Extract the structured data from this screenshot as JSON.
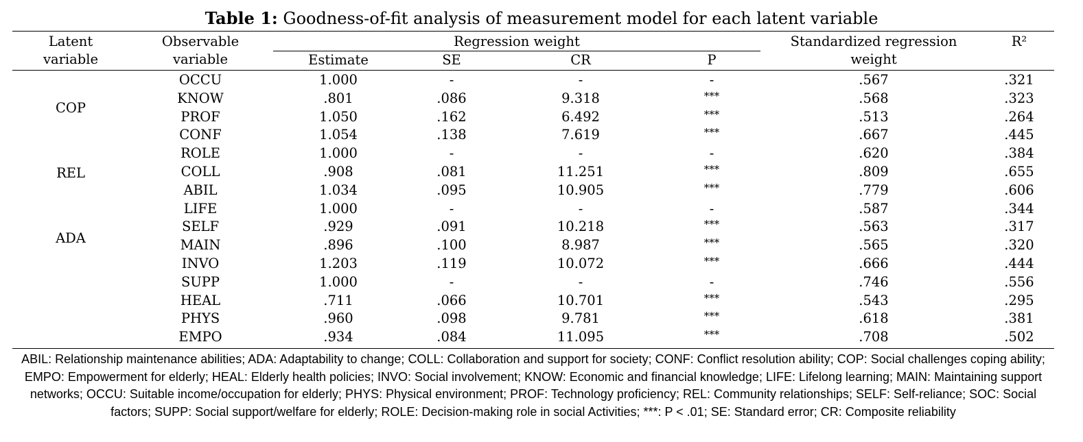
{
  "caption": {
    "label": "Table 1:",
    "text": " Goodness-of-fit analysis of measurement model for each latent variable"
  },
  "headers": {
    "latent_line1": "Latent",
    "latent_line2": "variable",
    "observable_line1": "Observable",
    "observable_line2": "variable",
    "regression_weight": "Regression weight",
    "estimate": "Estimate",
    "se": "SE",
    "cr": "CR",
    "p": "P",
    "standardized_line1": "Standardized regression",
    "standardized_line2": "weight",
    "r2": "R²"
  },
  "latent_labels": [
    "COP",
    "REL",
    "ADA"
  ],
  "rows": [
    {
      "obs": "OCCU",
      "est": "1.000",
      "se": "-",
      "cr": "-",
      "p": "-",
      "std": ".567",
      "r2": ".321"
    },
    {
      "obs": "KNOW",
      "est": ".801",
      "se": ".086",
      "cr": "9.318",
      "p": "***",
      "std": ".568",
      "r2": ".323"
    },
    {
      "obs": "PROF",
      "est": "1.050",
      "se": ".162",
      "cr": "6.492",
      "p": "***",
      "std": ".513",
      "r2": ".264"
    },
    {
      "obs": "CONF",
      "est": "1.054",
      "se": ".138",
      "cr": "7.619",
      "p": "***",
      "std": ".667",
      "r2": ".445"
    },
    {
      "obs": "ROLE",
      "est": "1.000",
      "se": "-",
      "cr": "-",
      "p": "-",
      "std": ".620",
      "r2": ".384"
    },
    {
      "obs": "COLL",
      "est": ".908",
      "se": ".081",
      "cr": "11.251",
      "p": "***",
      "std": ".809",
      "r2": ".655"
    },
    {
      "obs": "ABIL",
      "est": "1.034",
      "se": ".095",
      "cr": "10.905",
      "p": "***",
      "std": ".779",
      "r2": ".606"
    },
    {
      "obs": "LIFE",
      "est": "1.000",
      "se": "-",
      "cr": "-",
      "p": "-",
      "std": ".587",
      "r2": ".344"
    },
    {
      "obs": "SELF",
      "est": ".929",
      "se": ".091",
      "cr": "10.218",
      "p": "***",
      "std": ".563",
      "r2": ".317"
    },
    {
      "obs": "MAIN",
      "est": ".896",
      "se": ".100",
      "cr": "8.987",
      "p": "***",
      "std": ".565",
      "r2": ".320"
    },
    {
      "obs": "INVO",
      "est": "1.203",
      "se": ".119",
      "cr": "10.072",
      "p": "***",
      "std": ".666",
      "r2": ".444"
    },
    {
      "obs": "SUPP",
      "est": "1.000",
      "se": "-",
      "cr": "-",
      "p": "-",
      "std": ".746",
      "r2": ".556"
    },
    {
      "obs": "HEAL",
      "est": ".711",
      "se": ".066",
      "cr": "10.701",
      "p": "***",
      "std": ".543",
      "r2": ".295"
    },
    {
      "obs": "PHYS",
      "est": ".960",
      "se": ".098",
      "cr": "9.781",
      "p": "***",
      "std": ".618",
      "r2": ".381"
    },
    {
      "obs": "EMPO",
      "est": ".934",
      "se": ".084",
      "cr": "11.095",
      "p": "***",
      "std": ".708",
      "r2": ".502"
    }
  ],
  "footnote": "ABIL: Relationship maintenance abilities; ADA: Adaptability to change; COLL: Collaboration and support for society; CONF: Conflict resolution ability; COP: Social challenges coping ability; EMPO: Empowerment for elderly; HEAL: Elderly health policies; INVO: Social involvement; KNOW: Economic and financial knowledge; LIFE: Lifelong learning; MAIN: Maintaining support networks; OCCU: Suitable income/occupation for elderly; PHYS: Physical environment; PROF: Technology proficiency; REL: Community relationships; SELF: Self-reliance; SOC: Social factors; SUPP: Social support/welfare for elderly; ROLE: Decision-making role in social Activities; ***: P < .01; SE: Standard error; CR: Composite reliability"
}
